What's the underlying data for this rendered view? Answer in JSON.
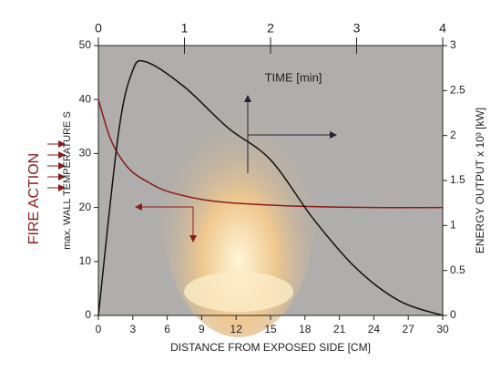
{
  "chart_data": {
    "type": "line",
    "x_label": "DISTANCE FROM EXPOSED SIDE  [CM]",
    "x2_label": "TIME  [min]",
    "y_label": "max. WALL TEMPERATURE S",
    "y2_label": "ENERGY OUTPUT x 10³ [kW]",
    "annotation": "FIRE ACTION",
    "xlim": [
      0,
      30
    ],
    "xticks": [
      0,
      3,
      6,
      9,
      12,
      15,
      18,
      21,
      24,
      27,
      30
    ],
    "x2lim": [
      0,
      4
    ],
    "x2ticks": [
      0,
      1,
      2,
      3,
      4
    ],
    "ylim": [
      0,
      50
    ],
    "yticks": [
      0,
      10,
      20,
      30,
      40,
      50
    ],
    "y2lim": [
      0,
      3
    ],
    "y2ticks": [
      0,
      0.5,
      1,
      1.5,
      2,
      2.5,
      3
    ],
    "series": [
      {
        "color": "#8b1a1a",
        "axis": "y",
        "x": [
          0,
          1,
          2,
          3,
          4.5,
          6,
          9,
          12,
          18,
          24,
          30
        ],
        "values": [
          40,
          33,
          29,
          26.5,
          24.5,
          23,
          21.5,
          20.8,
          20.2,
          20,
          20
        ]
      },
      {
        "color": "#111111",
        "axis": "y2",
        "x_axis": "x2",
        "x": [
          0,
          0.23,
          0.39,
          0.55,
          1,
          1.5,
          2,
          2.5,
          3,
          3.5,
          4
        ],
        "values": [
          0,
          2,
          2.7,
          2.82,
          2.54,
          2.09,
          1.73,
          1.07,
          0.52,
          0.16,
          0
        ]
      }
    ]
  }
}
